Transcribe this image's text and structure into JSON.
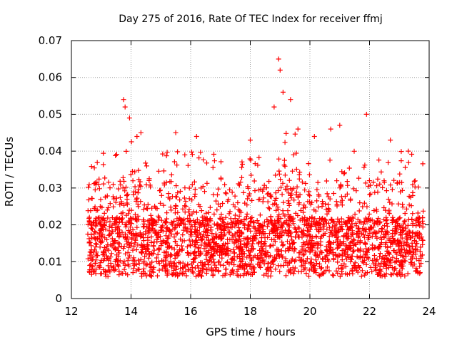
{
  "chart_data": {
    "type": "scatter",
    "title": "Day 275 of 2016, Rate Of TEC Index for receiver ffmj",
    "xlabel": "GPS time / hours",
    "ylabel": "ROTI / TECUs",
    "xlim": [
      12,
      24
    ],
    "ylim": [
      0,
      0.07
    ],
    "xticks": [
      "12",
      "14",
      "16",
      "18",
      "20",
      "22",
      "24"
    ],
    "yticks": [
      "0",
      "0.01",
      "0.02",
      "0.03",
      "0.04",
      "0.05",
      "0.06",
      "0.07"
    ],
    "grid": true,
    "marker": "+",
    "series": [
      {
        "name": "ROTI",
        "color": "#ff0000",
        "x_range": [
          12.55,
          23.8
        ],
        "typical_band": [
          0.004,
          0.025
        ],
        "description_points": "dense scatter; baseline ~0.01-0.02 with spikes",
        "notable_points": [
          {
            "x": 13.75,
            "y": 0.054
          },
          {
            "x": 13.8,
            "y": 0.052
          },
          {
            "x": 13.95,
            "y": 0.049
          },
          {
            "x": 14.2,
            "y": 0.044
          },
          {
            "x": 15.5,
            "y": 0.045
          },
          {
            "x": 16.2,
            "y": 0.044
          },
          {
            "x": 18.0,
            "y": 0.043
          },
          {
            "x": 18.8,
            "y": 0.052
          },
          {
            "x": 18.95,
            "y": 0.065
          },
          {
            "x": 19.0,
            "y": 0.062
          },
          {
            "x": 19.1,
            "y": 0.056
          },
          {
            "x": 19.35,
            "y": 0.054
          },
          {
            "x": 19.6,
            "y": 0.046
          },
          {
            "x": 20.15,
            "y": 0.044
          },
          {
            "x": 20.7,
            "y": 0.046
          },
          {
            "x": 21.0,
            "y": 0.047
          },
          {
            "x": 21.9,
            "y": 0.05
          },
          {
            "x": 22.7,
            "y": 0.043
          },
          {
            "x": 23.3,
            "y": 0.04
          }
        ]
      }
    ]
  }
}
